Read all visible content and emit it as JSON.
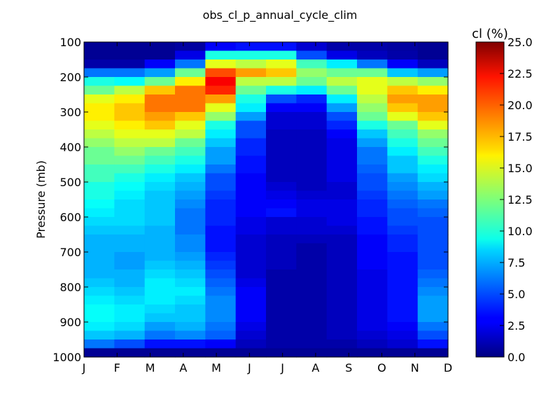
{
  "chart_data": {
    "type": "heatmap",
    "title": "obs_cl_p_annual_cycle_clim",
    "xlabel": "",
    "ylabel": "Pressure (mb)",
    "x_categories": [
      "J",
      "F",
      "M",
      "A",
      "M",
      "J",
      "J",
      "A",
      "S",
      "O",
      "N",
      "D"
    ],
    "y_ticks": [
      "100",
      "200",
      "300",
      "400",
      "500",
      "600",
      "700",
      "800",
      "900",
      "1000"
    ],
    "ylim": [
      1000,
      100
    ],
    "colormap": "jet",
    "colorbar": {
      "label": "cl (%)",
      "range": [
        0,
        25
      ],
      "ticks": [
        "0.0",
        "2.5",
        "5.0",
        "7.5",
        "10.0",
        "12.5",
        "15.0",
        "17.5",
        "20.0",
        "22.5",
        "25.0"
      ]
    },
    "pressure_levels": [
      112.5,
      137.5,
      162.5,
      187.5,
      212.5,
      237.5,
      262.5,
      287.5,
      312.5,
      337.5,
      362.5,
      387.5,
      412.5,
      437.5,
      462.5,
      487.5,
      512.5,
      537.5,
      562.5,
      587.5,
      612.5,
      637.5,
      662.5,
      687.5,
      712.5,
      737.5,
      762.5,
      787.5,
      812.5,
      837.5,
      862.5,
      887.5,
      912.5,
      937.5,
      962.5,
      987.5
    ],
    "values": [
      [
        0.5,
        0.5,
        0.5,
        0.8,
        3,
        3.5,
        3.5,
        2,
        1,
        1,
        0.8,
        0.5
      ],
      [
        0.5,
        0.5,
        0.5,
        2.5,
        10,
        10,
        10,
        5,
        2.5,
        1.5,
        1,
        0.5
      ],
      [
        1,
        1,
        3,
        6,
        15,
        14,
        15,
        11,
        9,
        6,
        3,
        1.5
      ],
      [
        6,
        6,
        7,
        12,
        20,
        18,
        17,
        13,
        12,
        12,
        8,
        7
      ],
      [
        10,
        9.5,
        12,
        16,
        22,
        14,
        14,
        12,
        14,
        15,
        14,
        13
      ],
      [
        12,
        14,
        17,
        19,
        21,
        12,
        10,
        9,
        12,
        15,
        17,
        16
      ],
      [
        15,
        16,
        19,
        19,
        18,
        10,
        5,
        4,
        9,
        14,
        18,
        18
      ],
      [
        16,
        17,
        19,
        19,
        15,
        9,
        3,
        3,
        7,
        13,
        17,
        18
      ],
      [
        16,
        17,
        18,
        17,
        13,
        7,
        2,
        2,
        5,
        12,
        15,
        17
      ],
      [
        15,
        16,
        17,
        15,
        10,
        5,
        2,
        2,
        4,
        10,
        12,
        15
      ],
      [
        14,
        15,
        15,
        14,
        9,
        5,
        1.5,
        1.5,
        3,
        8,
        11,
        13
      ],
      [
        13,
        14,
        14,
        12,
        8,
        4,
        1.5,
        1.5,
        2.5,
        7,
        10,
        12
      ],
      [
        12,
        13,
        12,
        11,
        7,
        4,
        1.5,
        1.5,
        2.5,
        6,
        9,
        11
      ],
      [
        12,
        12,
        11,
        10,
        7,
        3.5,
        1.5,
        1.5,
        2.5,
        6,
        8,
        10
      ],
      [
        11,
        11,
        10,
        9,
        6,
        3.5,
        1.5,
        1.5,
        2.5,
        5.5,
        8,
        9
      ],
      [
        11,
        10,
        9,
        8,
        5,
        3,
        1.5,
        1.5,
        2.5,
        5,
        7,
        8.5
      ],
      [
        10,
        9.5,
        8.5,
        7.5,
        5,
        3,
        2,
        1.5,
        2,
        5,
        6.5,
        7.5
      ],
      [
        10,
        9,
        8,
        7,
        4.5,
        3,
        2.5,
        2,
        2,
        4.5,
        6,
        7
      ],
      [
        9.5,
        8.5,
        8,
        6.5,
        4,
        3,
        3,
        2.5,
        2.5,
        4,
        5.5,
        6
      ],
      [
        9,
        8.5,
        8,
        6,
        4,
        3,
        3.5,
        2.5,
        2.5,
        4,
        5,
        5.5
      ],
      [
        8.5,
        8.5,
        8,
        6,
        4,
        2.5,
        2,
        2,
        2.5,
        3.5,
        5,
        5
      ],
      [
        8,
        8,
        7.5,
        6,
        3.5,
        2.5,
        2,
        2,
        2,
        3.5,
        4.5,
        5
      ],
      [
        7.5,
        7.5,
        7.5,
        6.5,
        3.5,
        2,
        1.5,
        1.5,
        1.5,
        3,
        4,
        5
      ],
      [
        7.5,
        7.5,
        7.5,
        6.5,
        3.5,
        2,
        1.5,
        1,
        1.5,
        3,
        4,
        5
      ],
      [
        7.5,
        7,
        7.5,
        7,
        4,
        2,
        1.5,
        1,
        1.5,
        3,
        3.5,
        5
      ],
      [
        7.5,
        7,
        8,
        7.5,
        4.5,
        2,
        1.5,
        1,
        1.5,
        3,
        3.5,
        5
      ],
      [
        7.5,
        7.5,
        8.5,
        8,
        5,
        2,
        1,
        1,
        1.5,
        2.5,
        3.5,
        5.5
      ],
      [
        8,
        7.5,
        9,
        8.5,
        5.5,
        2.5,
        1,
        1,
        1.5,
        2.5,
        3.5,
        6
      ],
      [
        8.5,
        8,
        9,
        9,
        6,
        3,
        1,
        1,
        1.5,
        2.5,
        3.5,
        6.5
      ],
      [
        9,
        8.5,
        9,
        8.5,
        6.5,
        3,
        1,
        1,
        1.5,
        2.5,
        3.5,
        7
      ],
      [
        9.5,
        9,
        8.5,
        8,
        6.5,
        3,
        1,
        1,
        1.5,
        2.5,
        3.5,
        7
      ],
      [
        9.5,
        9,
        8,
        8,
        6.5,
        3,
        1,
        1,
        1.5,
        2.5,
        3.5,
        7
      ],
      [
        9,
        8.5,
        7,
        7.5,
        6,
        2.5,
        1,
        1,
        1.5,
        2.5,
        3,
        6
      ],
      [
        8,
        7.5,
        6,
        6.5,
        5.5,
        2,
        1,
        1,
        1.5,
        2,
        2.5,
        5
      ],
      [
        6,
        5,
        3.5,
        3.5,
        3,
        1.5,
        1,
        1,
        1,
        1.5,
        2,
        3.5
      ],
      [
        0.5,
        0.5,
        0.5,
        0.5,
        0.5,
        0.5,
        0.5,
        0.5,
        0.5,
        0.5,
        0.5,
        0.5
      ]
    ]
  }
}
